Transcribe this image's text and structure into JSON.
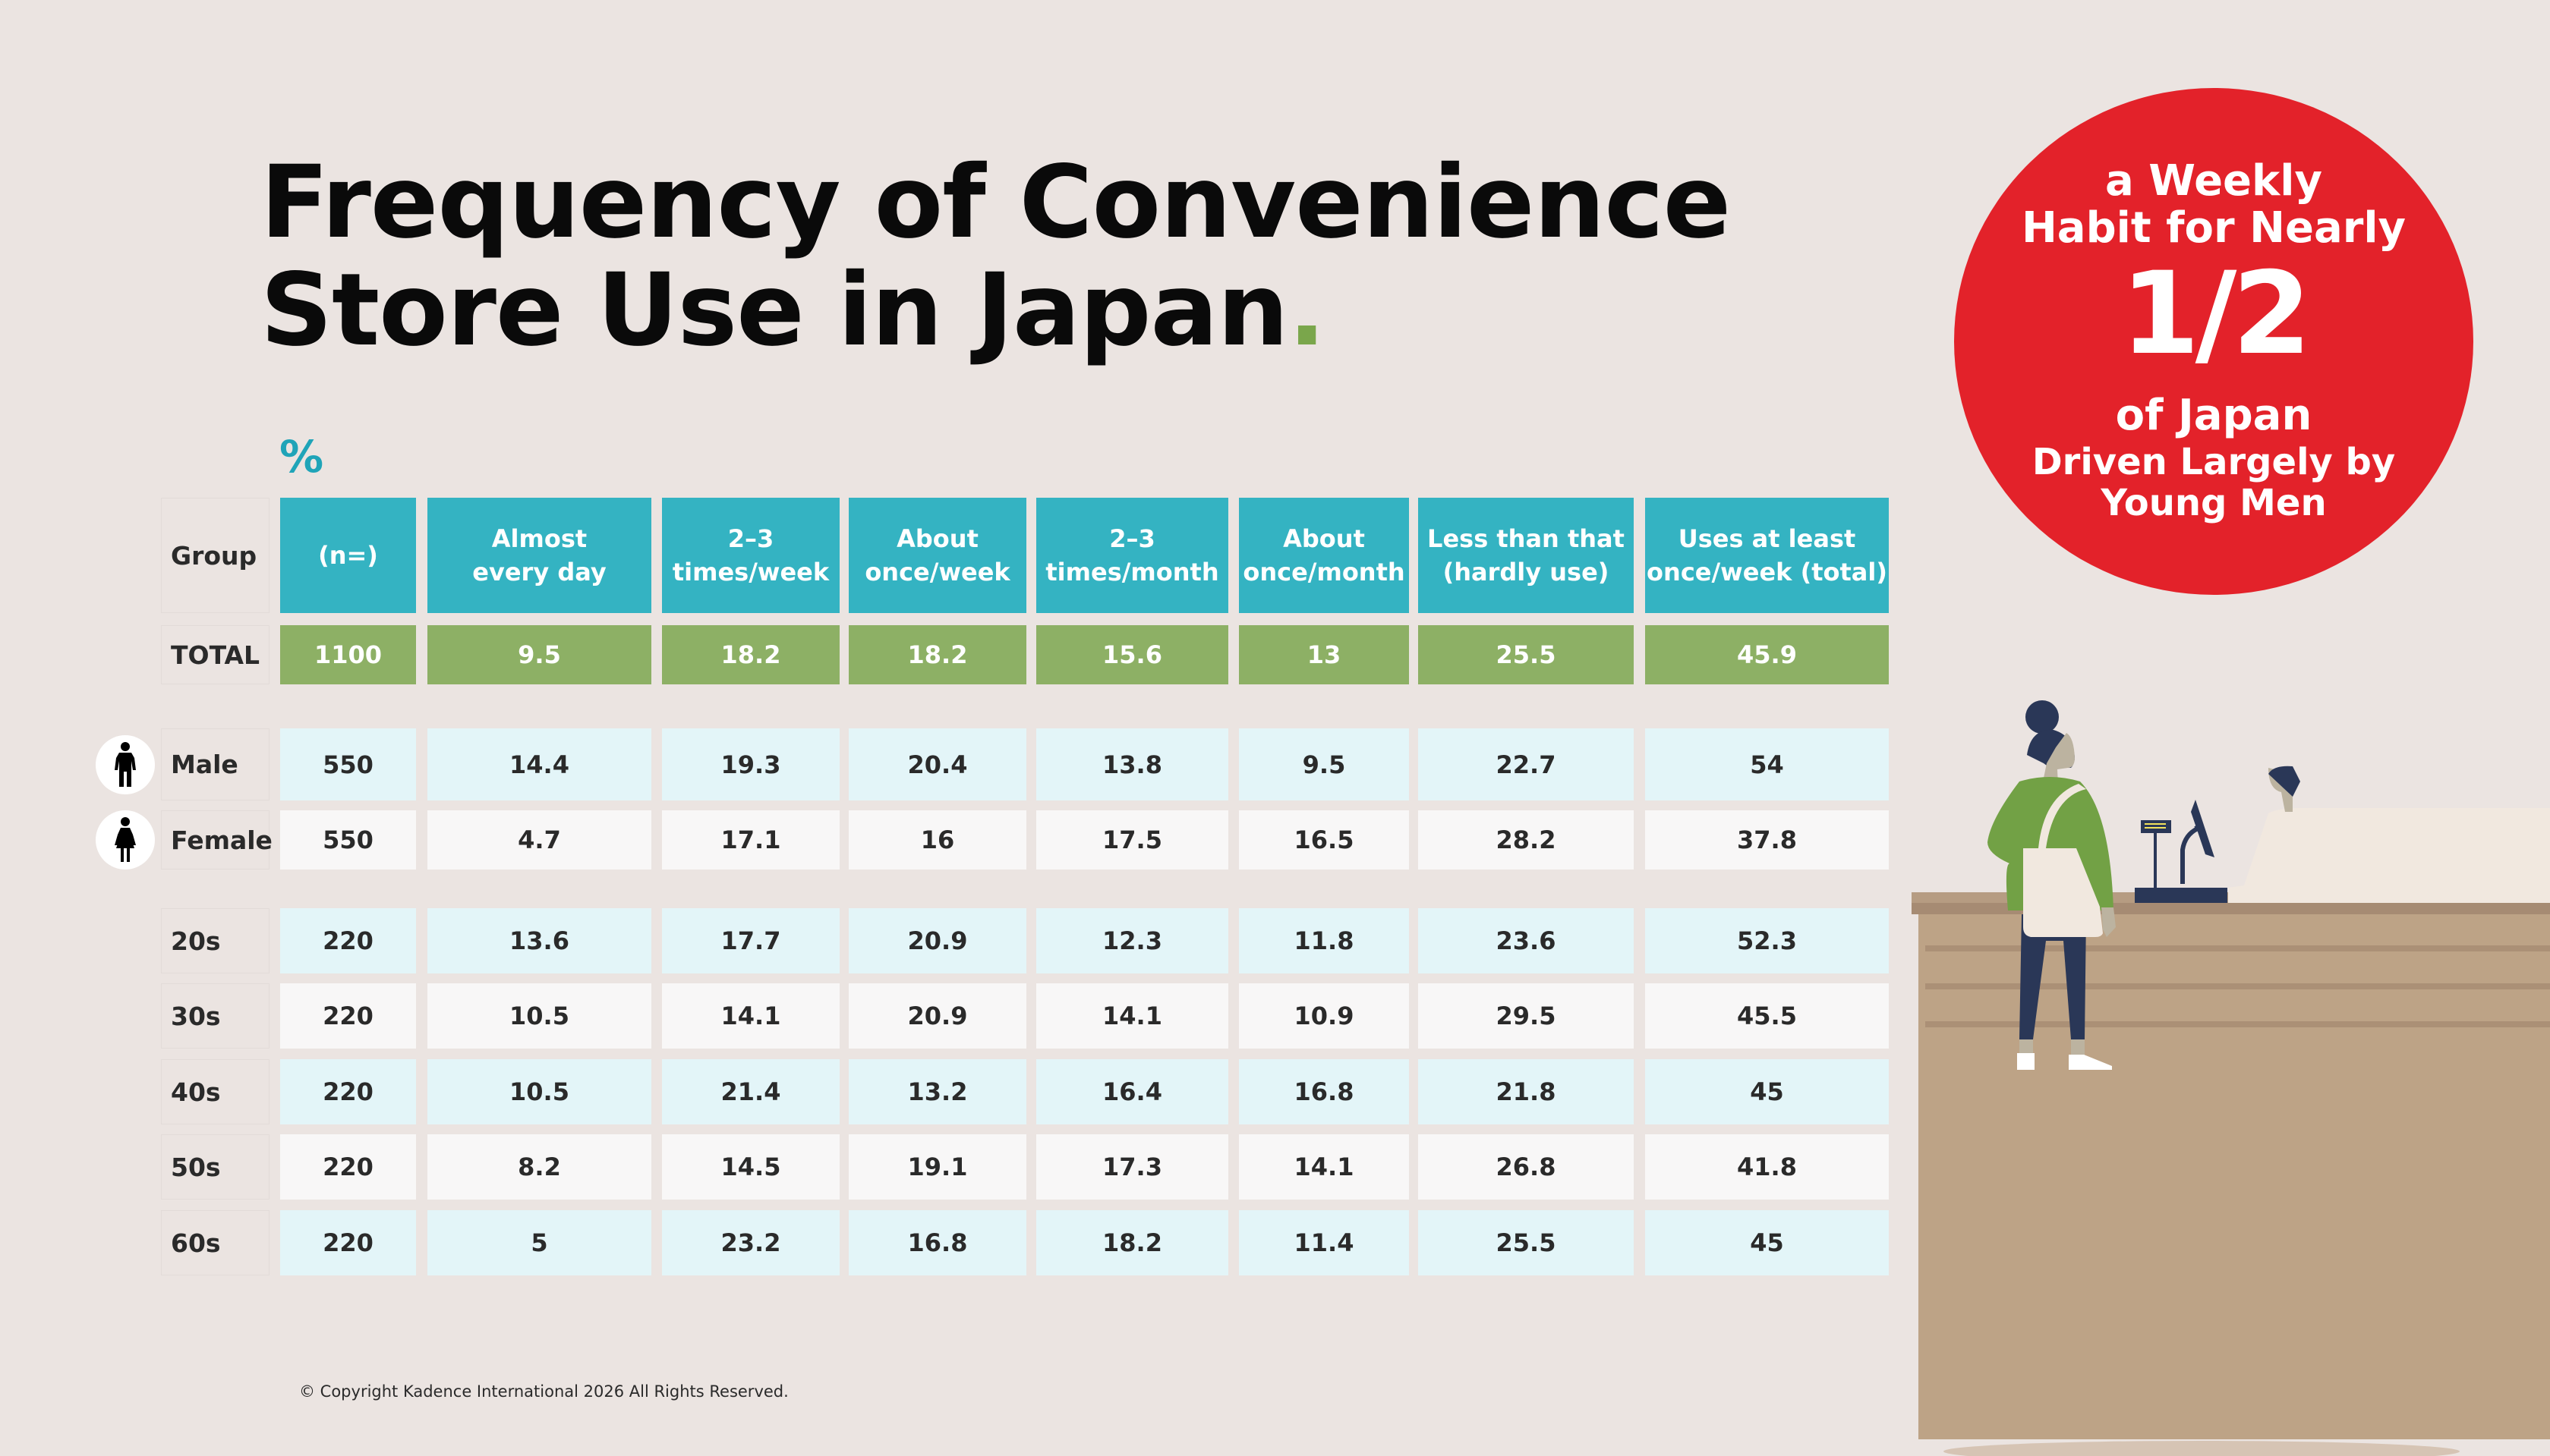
{
  "title": {
    "line1": "Frequency of Convenience",
    "line2": "Store Use in Japan",
    "dot": "."
  },
  "unit_label": "%",
  "table": {
    "headers": [
      "Group",
      "(n=)",
      "Almost\nevery day",
      "2–3\ntimes/week",
      "About\nonce/week",
      "2–3\ntimes/month",
      "About\nonce/month",
      "Less than that\n(hardly use)",
      "Uses at least\nonce/week (total)"
    ],
    "total_row": {
      "group": "TOTAL",
      "values": [
        "1100",
        "9.5",
        "18.2",
        "18.2",
        "15.6",
        "13",
        "25.5",
        "45.9"
      ]
    },
    "gender_rows": [
      {
        "group": "Male",
        "icon": "male-person-icon",
        "values": [
          "550",
          "14.4",
          "19.3",
          "20.4",
          "13.8",
          "9.5",
          "22.7",
          "54"
        ]
      },
      {
        "group": "Female",
        "icon": "female-person-icon",
        "values": [
          "550",
          "4.7",
          "17.1",
          "16",
          "17.5",
          "16.5",
          "28.2",
          "37.8"
        ]
      }
    ],
    "age_rows": [
      {
        "group": "20s",
        "values": [
          "220",
          "13.6",
          "17.7",
          "20.9",
          "12.3",
          "11.8",
          "23.6",
          "52.3"
        ]
      },
      {
        "group": "30s",
        "values": [
          "220",
          "10.5",
          "14.1",
          "20.9",
          "14.1",
          "10.9",
          "29.5",
          "45.5"
        ]
      },
      {
        "group": "40s",
        "values": [
          "220",
          "10.5",
          "21.4",
          "13.2",
          "16.4",
          "16.8",
          "21.8",
          "45"
        ]
      },
      {
        "group": "50s",
        "values": [
          "220",
          "8.2",
          "14.5",
          "19.1",
          "17.3",
          "14.1",
          "26.8",
          "41.8"
        ]
      },
      {
        "group": "60s",
        "values": [
          "220",
          "5",
          "23.2",
          "16.8",
          "18.2",
          "11.4",
          "25.5",
          "45"
        ]
      }
    ]
  },
  "callout": {
    "line1": "a Weekly",
    "line2": "Habit for Nearly",
    "big": "1/2",
    "line3": "of Japan",
    "line4": "Driven Largely by",
    "line5": "Young Men"
  },
  "footer": {
    "copyright": "© Copyright Kadence International 2026 All Rights Reserved."
  },
  "colors": {
    "header": "#34b3c2",
    "total": "#8db065",
    "row_light": "#e3f5f8",
    "row_white": "#f8f7f7",
    "callout": "#e3222a",
    "accent_dot": "#7aa64b",
    "background": "#ebe4e1"
  },
  "chart_data": {
    "type": "table",
    "title": "Frequency of Convenience Store Use in Japan",
    "unit": "%",
    "columns": [
      "Group",
      "(n=)",
      "Almost every day",
      "2–3 times/week",
      "About once/week",
      "2–3 times/month",
      "About once/month",
      "Less than that (hardly use)",
      "Uses at least once/week (total)"
    ],
    "rows": [
      [
        "TOTAL",
        1100,
        9.5,
        18.2,
        18.2,
        15.6,
        13,
        25.5,
        45.9
      ],
      [
        "Male",
        550,
        14.4,
        19.3,
        20.4,
        13.8,
        9.5,
        22.7,
        54
      ],
      [
        "Female",
        550,
        4.7,
        17.1,
        16,
        17.5,
        16.5,
        28.2,
        37.8
      ],
      [
        "20s",
        220,
        13.6,
        17.7,
        20.9,
        12.3,
        11.8,
        23.6,
        52.3
      ],
      [
        "30s",
        220,
        10.5,
        14.1,
        20.9,
        14.1,
        10.9,
        29.5,
        45.5
      ],
      [
        "40s",
        220,
        10.5,
        21.4,
        13.2,
        16.4,
        16.8,
        21.8,
        45
      ],
      [
        "50s",
        220,
        8.2,
        14.5,
        19.1,
        17.3,
        14.1,
        26.8,
        41.8
      ],
      [
        "60s",
        220,
        5,
        23.2,
        16.8,
        18.2,
        11.4,
        25.5,
        45
      ]
    ]
  }
}
